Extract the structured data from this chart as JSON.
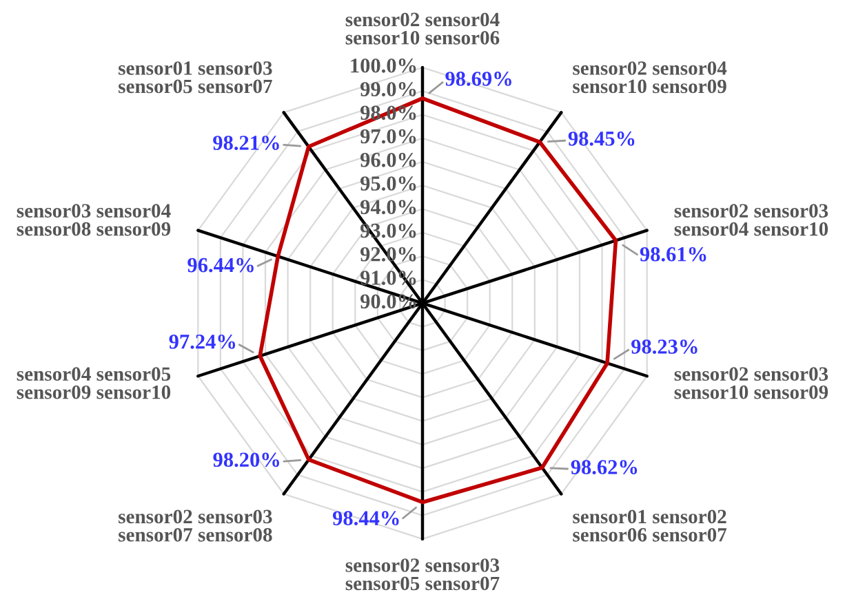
{
  "chart_data": {
    "type": "radar",
    "categories": [
      "sensor02 sensor04\nsensor10 sensor06",
      "sensor02 sensor04\nsensor10 sensor09",
      "sensor02 sensor03\nsensor04 sensor10",
      "sensor02 sensor03\nsensor10 sensor09",
      "sensor01 sensor02\nsensor06 sensor07",
      "sensor02 sensor03\nsensor05 sensor07",
      "sensor02 sensor03\nsensor07 sensor08",
      "sensor04 sensor05\nsensor09 sensor10",
      "sensor03 sensor04\nsensor08 sensor09",
      "sensor01 sensor03\nsensor05 sensor07"
    ],
    "series": [
      {
        "color": "#c00000",
        "values": [
          98.69,
          98.45,
          98.61,
          98.23,
          98.62,
          98.44,
          98.2,
          97.24,
          96.44,
          98.21
        ],
        "value_labels": [
          "98.69%",
          "98.45%",
          "98.61%",
          "98.23%",
          "98.62%",
          "98.44%",
          "98.20%",
          "97.24%",
          "96.44%",
          "98.21%"
        ]
      }
    ],
    "ylim": [
      90,
      100
    ],
    "yticks": [
      {
        "value": 90,
        "label": "90.0%"
      },
      {
        "value": 91,
        "label": "91.0%"
      },
      {
        "value": 92,
        "label": "92.0%"
      },
      {
        "value": 93,
        "label": "93.0%"
      },
      {
        "value": 94,
        "label": "94.0%"
      },
      {
        "value": 95,
        "label": "95.0%"
      },
      {
        "value": 96,
        "label": "96.0%"
      },
      {
        "value": 97,
        "label": "97.0%"
      },
      {
        "value": 98,
        "label": "98.0%"
      },
      {
        "value": 99,
        "label": "99.0%"
      },
      {
        "value": 100,
        "label": "100.0%"
      }
    ],
    "grid": true,
    "marker": "none",
    "line_style": "solid"
  }
}
